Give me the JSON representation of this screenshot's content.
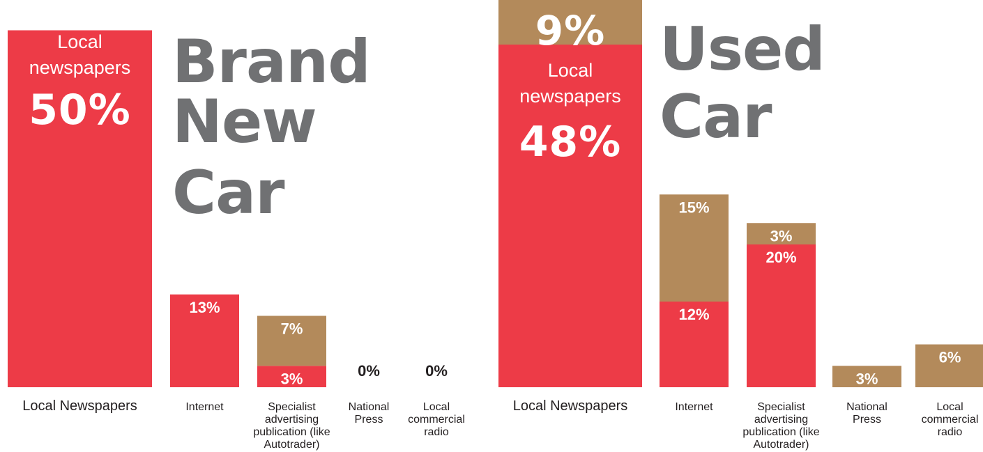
{
  "colors": {
    "red": "#ed3b47",
    "tan": "#b38a5b",
    "title": "#707173",
    "dark": "#231f20",
    "white": "#ffffff"
  },
  "chart_data": [
    {
      "type": "bar",
      "stacked": true,
      "title": "Brand New Car",
      "title_lines": [
        "Brand",
        "New",
        "Car"
      ],
      "categories": [
        "Local Newspapers",
        "Internet",
        "Specialist advertising publication (like Autotrader)",
        "National Press",
        "Local commercial radio"
      ],
      "category_lines": [
        [
          "Local Newspapers"
        ],
        [
          "Internet"
        ],
        [
          "Specialist",
          "advertising",
          "publication (like",
          "Autotrader)"
        ],
        [
          "National",
          "Press"
        ],
        [
          "Local",
          "commercial",
          "radio"
        ]
      ],
      "series": [
        {
          "color": "#ed3b47",
          "values": [
            50,
            13,
            3,
            0,
            0
          ]
        },
        {
          "color": "#b38a5b",
          "values": [
            0,
            0,
            7,
            0,
            0
          ]
        }
      ],
      "labels": [
        [
          {
            "text": "50%"
          }
        ],
        [
          {
            "text": "13%"
          }
        ],
        [
          {
            "text": "3%"
          },
          {
            "text": "7%"
          }
        ],
        [
          {
            "text": "0%"
          }
        ],
        [
          {
            "text": "0%"
          }
        ]
      ],
      "first_bar_label": [
        "Local",
        "newspapers"
      ],
      "ylim": [
        0,
        60
      ]
    },
    {
      "type": "bar",
      "stacked": true,
      "title": "Used Car",
      "title_lines": [
        "Used",
        "Car"
      ],
      "categories": [
        "Local Newspapers",
        "Internet",
        "Specialist advertising publication (like Autotrader)",
        "National Press",
        "Local commercial radio"
      ],
      "category_lines": [
        [
          "Local Newspapers"
        ],
        [
          "Internet"
        ],
        [
          "Specialist",
          "advertising",
          "publication (like",
          "Autotrader)"
        ],
        [
          "National",
          "Press"
        ],
        [
          "Local",
          "commercial",
          "radio"
        ]
      ],
      "series": [
        {
          "color": "#ed3b47",
          "values": [
            48,
            12,
            20,
            0,
            0
          ]
        },
        {
          "color": "#b38a5b",
          "values": [
            9,
            15,
            3,
            3,
            6
          ]
        }
      ],
      "labels": [
        [
          {
            "text": "48%"
          },
          {
            "text": "9%"
          }
        ],
        [
          {
            "text": "12%"
          },
          {
            "text": "15%"
          }
        ],
        [
          {
            "text": "20%"
          },
          {
            "text": "3%"
          }
        ],
        [
          {
            "text": "3%"
          }
        ],
        [
          {
            "text": "6%"
          }
        ]
      ],
      "first_bar_label": [
        "Local",
        "newspapers"
      ],
      "ylim": [
        0,
        60
      ]
    }
  ]
}
